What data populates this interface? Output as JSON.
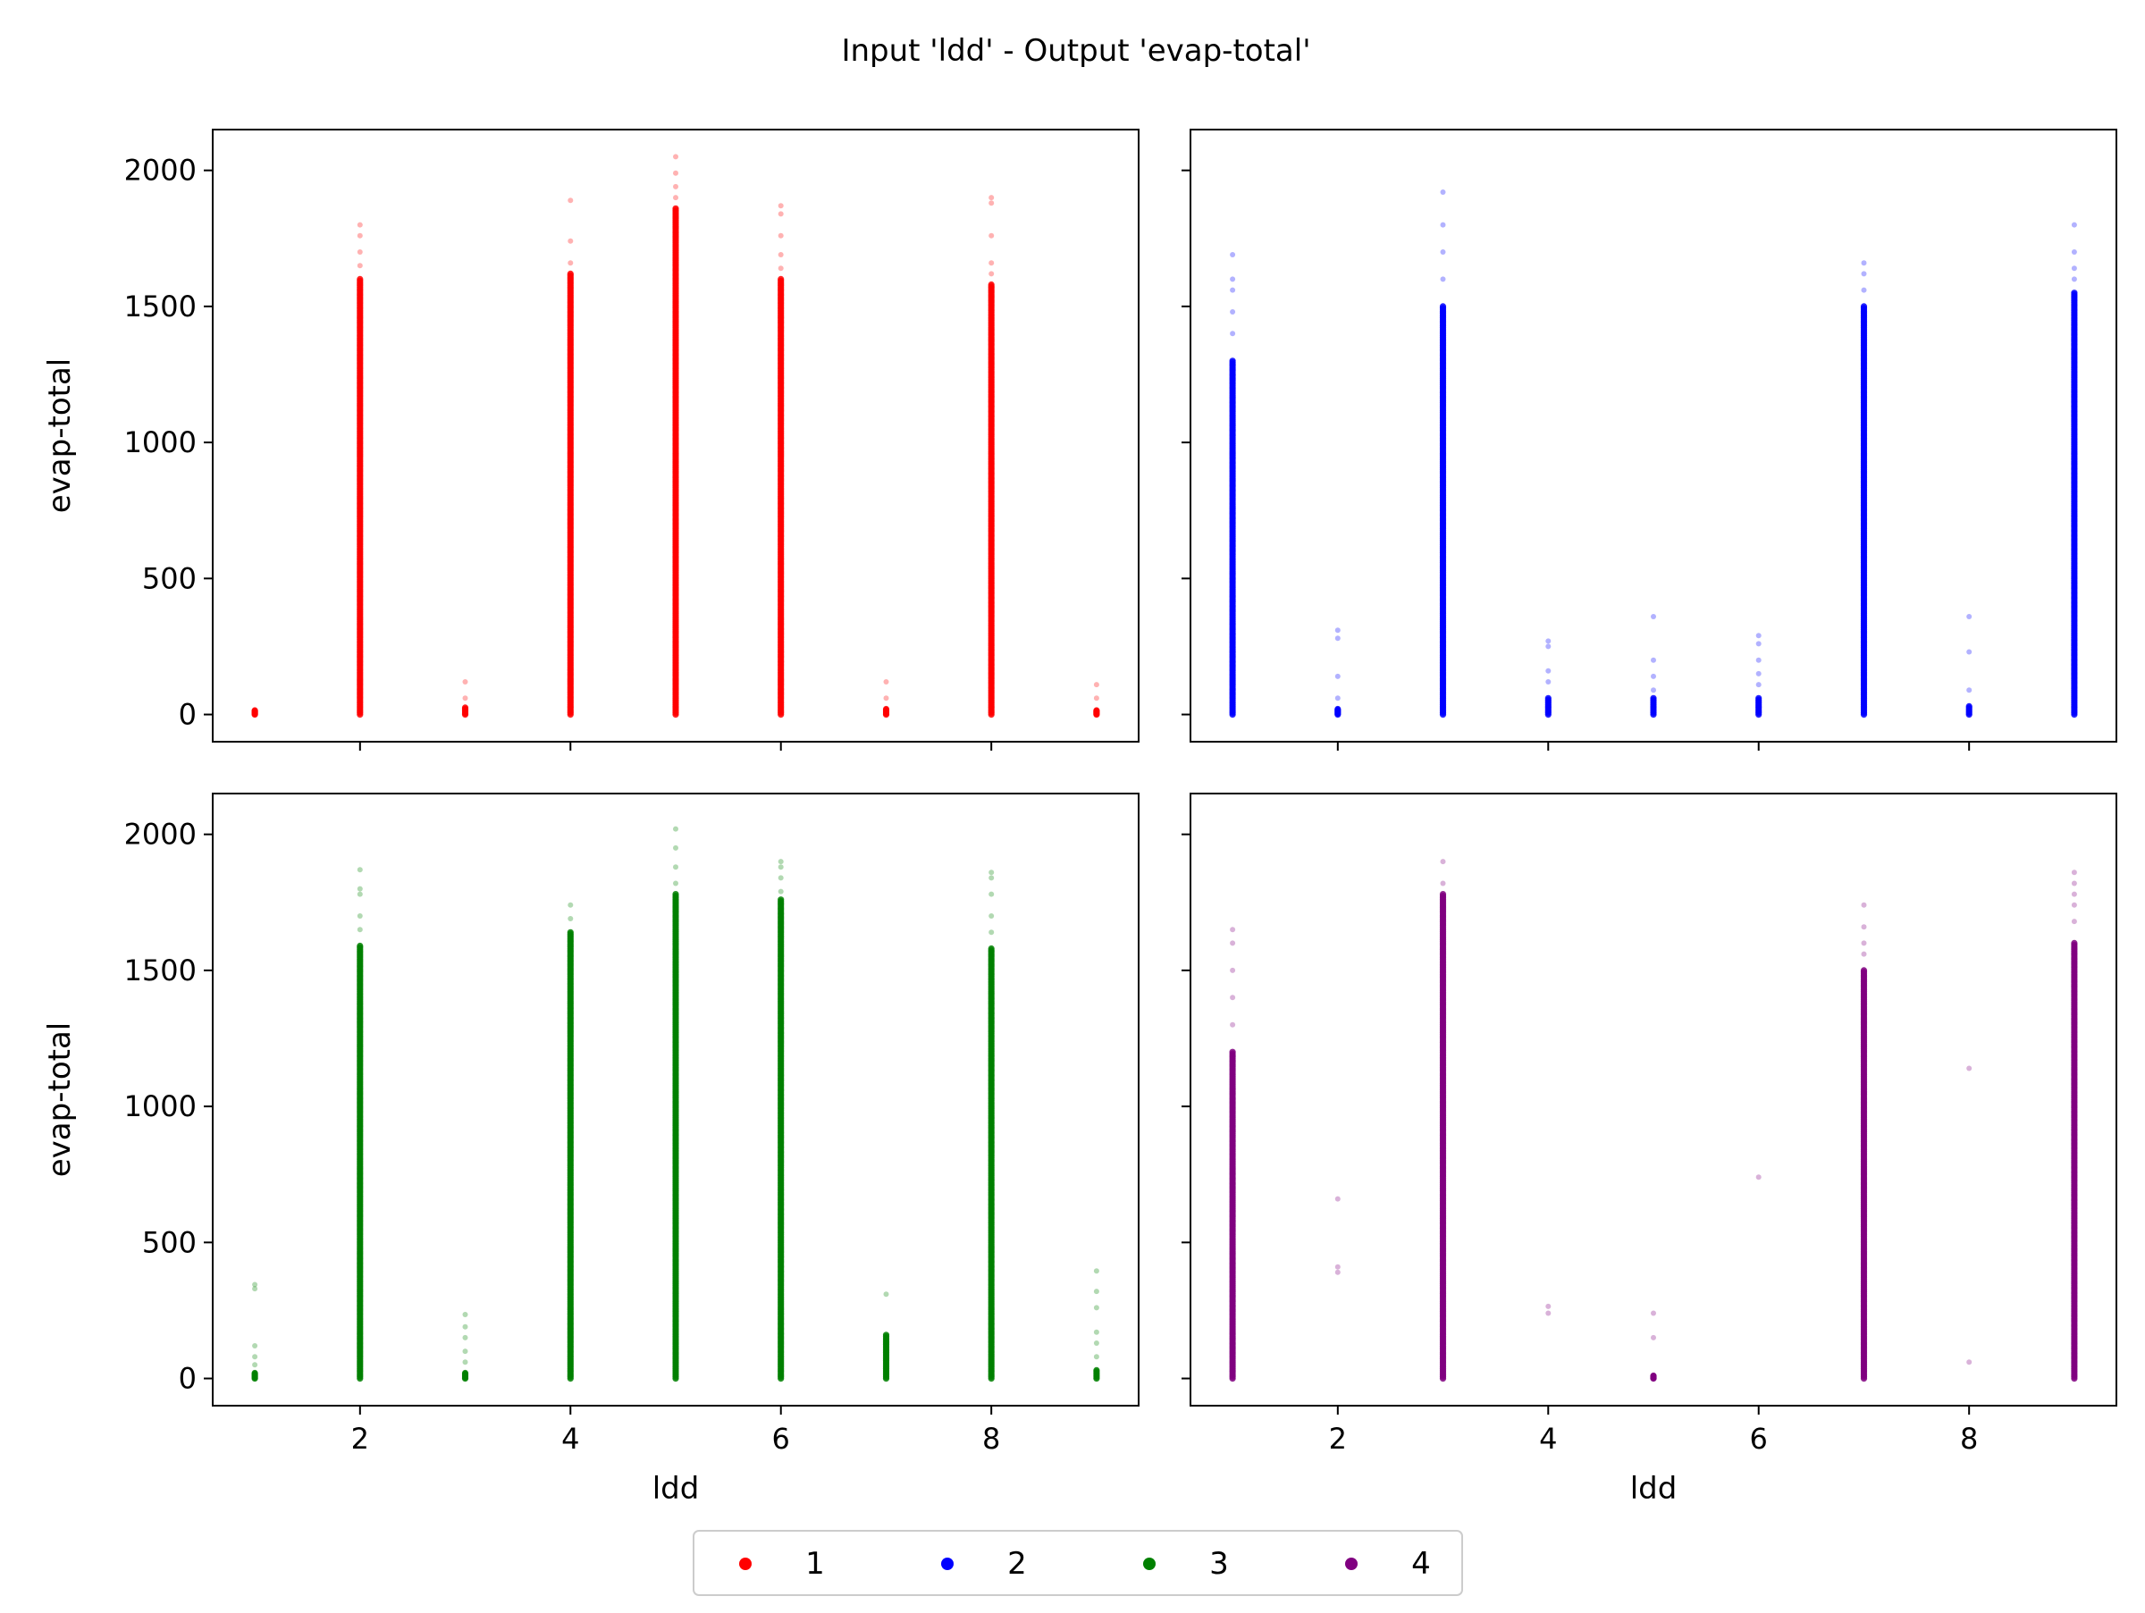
{
  "figure": {
    "title": "Input 'ldd' - Output 'evap-total'"
  },
  "legend": {
    "placement": "bottom-center",
    "entries": [
      {
        "label": "1",
        "color": "#ff0000"
      },
      {
        "label": "2",
        "color": "#0000ff"
      },
      {
        "label": "3",
        "color": "#008000"
      },
      {
        "label": "4",
        "color": "#800080"
      }
    ]
  },
  "chart_data": [
    {
      "type": "scatter",
      "panel": "top-left",
      "series_label": "1",
      "color": "#ff0000",
      "xlabel": "",
      "ylabel": "evap-total",
      "xlim": [
        0.6,
        9.4
      ],
      "ylim": [
        -100,
        2150
      ],
      "xticks": [
        2,
        4,
        6,
        8
      ],
      "yticks": [
        0,
        500,
        1000,
        1500,
        2000
      ],
      "show_xtick_labels": false,
      "show_ytick_labels": true,
      "grid": false,
      "columns": [
        {
          "x": 1,
          "dense_range": [
            0,
            15
          ],
          "sparse": []
        },
        {
          "x": 2,
          "dense_range": [
            0,
            1600
          ],
          "sparse": [
            1650,
            1700,
            1760,
            1800
          ]
        },
        {
          "x": 3,
          "dense_range": [
            0,
            25
          ],
          "sparse": [
            60,
            120
          ]
        },
        {
          "x": 4,
          "dense_range": [
            0,
            1620
          ],
          "sparse": [
            1660,
            1740,
            1890
          ]
        },
        {
          "x": 5,
          "dense_range": [
            0,
            1860
          ],
          "sparse": [
            1900,
            1940,
            1990,
            2050
          ]
        },
        {
          "x": 6,
          "dense_range": [
            0,
            1600
          ],
          "sparse": [
            1640,
            1690,
            1760,
            1840,
            1870
          ]
        },
        {
          "x": 7,
          "dense_range": [
            0,
            20
          ],
          "sparse": [
            60,
            120
          ]
        },
        {
          "x": 8,
          "dense_range": [
            0,
            1580
          ],
          "sparse": [
            1620,
            1660,
            1760,
            1880,
            1900
          ]
        },
        {
          "x": 9,
          "dense_range": [
            0,
            15
          ],
          "sparse": [
            60,
            110
          ]
        }
      ]
    },
    {
      "type": "scatter",
      "panel": "top-right",
      "series_label": "2",
      "color": "#0000ff",
      "xlabel": "",
      "ylabel": "",
      "xlim": [
        0.6,
        9.4
      ],
      "ylim": [
        -100,
        2150
      ],
      "xticks": [
        2,
        4,
        6,
        8
      ],
      "yticks": [
        0,
        500,
        1000,
        1500,
        2000
      ],
      "show_xtick_labels": false,
      "show_ytick_labels": false,
      "grid": false,
      "columns": [
        {
          "x": 1,
          "dense_range": [
            0,
            1300
          ],
          "sparse": [
            1400,
            1480,
            1560,
            1600,
            1690
          ]
        },
        {
          "x": 2,
          "dense_range": [
            0,
            20
          ],
          "sparse": [
            60,
            140,
            280,
            310
          ]
        },
        {
          "x": 3,
          "dense_range": [
            0,
            1500
          ],
          "sparse": [
            1600,
            1700,
            1800,
            1920
          ]
        },
        {
          "x": 4,
          "dense_range": [
            0,
            60
          ],
          "sparse": [
            120,
            160,
            250,
            270
          ]
        },
        {
          "x": 5,
          "dense_range": [
            0,
            60
          ],
          "sparse": [
            90,
            140,
            200,
            360
          ]
        },
        {
          "x": 6,
          "dense_range": [
            0,
            60
          ],
          "sparse": [
            110,
            150,
            200,
            260,
            290
          ]
        },
        {
          "x": 7,
          "dense_range": [
            0,
            1500
          ],
          "sparse": [
            1560,
            1620,
            1660
          ]
        },
        {
          "x": 8,
          "dense_range": [
            0,
            30
          ],
          "sparse": [
            90,
            230,
            360
          ]
        },
        {
          "x": 9,
          "dense_range": [
            0,
            1550
          ],
          "sparse": [
            1600,
            1640,
            1700,
            1800
          ]
        }
      ]
    },
    {
      "type": "scatter",
      "panel": "bottom-left",
      "series_label": "3",
      "color": "#008000",
      "xlabel": "ldd",
      "ylabel": "evap-total",
      "xlim": [
        0.6,
        9.4
      ],
      "ylim": [
        -100,
        2150
      ],
      "xticks": [
        2,
        4,
        6,
        8
      ],
      "yticks": [
        0,
        500,
        1000,
        1500,
        2000
      ],
      "show_xtick_labels": true,
      "show_ytick_labels": true,
      "grid": false,
      "columns": [
        {
          "x": 1,
          "dense_range": [
            0,
            20
          ],
          "sparse": [
            50,
            80,
            120,
            330,
            345
          ]
        },
        {
          "x": 2,
          "dense_range": [
            0,
            1590
          ],
          "sparse": [
            1650,
            1700,
            1780,
            1800,
            1870
          ]
        },
        {
          "x": 3,
          "dense_range": [
            0,
            20
          ],
          "sparse": [
            60,
            100,
            150,
            190,
            235
          ]
        },
        {
          "x": 4,
          "dense_range": [
            0,
            1640
          ],
          "sparse": [
            1690,
            1740
          ]
        },
        {
          "x": 5,
          "dense_range": [
            0,
            1780
          ],
          "sparse": [
            1820,
            1880,
            1950,
            2020
          ]
        },
        {
          "x": 6,
          "dense_range": [
            0,
            1760
          ],
          "sparse": [
            1790,
            1840,
            1880,
            1900
          ]
        },
        {
          "x": 7,
          "dense_range": [
            0,
            160
          ],
          "sparse": [
            310
          ]
        },
        {
          "x": 8,
          "dense_range": [
            0,
            1580
          ],
          "sparse": [
            1640,
            1700,
            1780,
            1840,
            1860
          ]
        },
        {
          "x": 9,
          "dense_range": [
            0,
            30
          ],
          "sparse": [
            80,
            130,
            170,
            260,
            320,
            395
          ]
        }
      ]
    },
    {
      "type": "scatter",
      "panel": "bottom-right",
      "series_label": "4",
      "color": "#800080",
      "xlabel": "ldd",
      "ylabel": "",
      "xlim": [
        0.6,
        9.4
      ],
      "ylim": [
        -100,
        2150
      ],
      "xticks": [
        2,
        4,
        6,
        8
      ],
      "yticks": [
        0,
        500,
        1000,
        1500,
        2000
      ],
      "show_xtick_labels": true,
      "show_ytick_labels": false,
      "grid": false,
      "columns": [
        {
          "x": 1,
          "dense_range": [
            0,
            1200
          ],
          "sparse": [
            1300,
            1400,
            1500,
            1600,
            1650
          ]
        },
        {
          "x": 2,
          "dense_range": [
            null,
            null
          ],
          "sparse": [
            390,
            410,
            660
          ]
        },
        {
          "x": 3,
          "dense_range": [
            0,
            1780
          ],
          "sparse": [
            1820,
            1900
          ]
        },
        {
          "x": 4,
          "dense_range": [
            null,
            null
          ],
          "sparse": [
            240,
            265
          ]
        },
        {
          "x": 5,
          "dense_range": [
            0,
            10
          ],
          "sparse": [
            150,
            240
          ]
        },
        {
          "x": 6,
          "dense_range": [
            null,
            null
          ],
          "sparse": [
            740
          ]
        },
        {
          "x": 7,
          "dense_range": [
            0,
            1500
          ],
          "sparse": [
            1560,
            1600,
            1660,
            1740
          ]
        },
        {
          "x": 8,
          "dense_range": [
            null,
            null
          ],
          "sparse": [
            60,
            1140
          ]
        },
        {
          "x": 9,
          "dense_range": [
            0,
            1600
          ],
          "sparse": [
            1680,
            1740,
            1780,
            1820,
            1860
          ]
        }
      ]
    }
  ]
}
